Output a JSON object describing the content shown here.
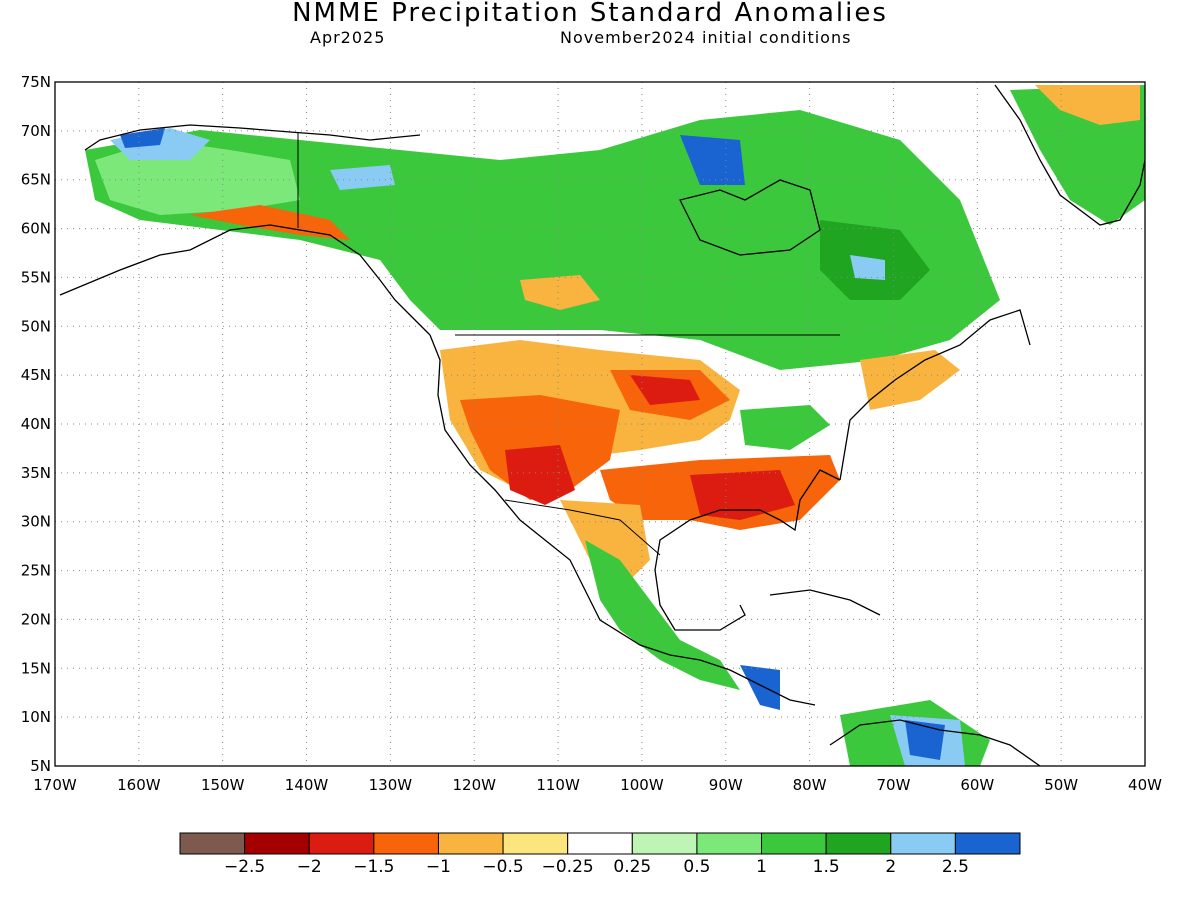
{
  "title": "NMME Precipitation Standard Anomalies",
  "valid_month": "Apr2025",
  "initial_conditions": "November2024 initial conditions",
  "map": {
    "lat_labels": [
      "75N",
      "70N",
      "65N",
      "60N",
      "55N",
      "50N",
      "45N",
      "40N",
      "35N",
      "30N",
      "25N",
      "20N",
      "15N",
      "10N",
      "5N"
    ],
    "lon_labels": [
      "170W",
      "160W",
      "150W",
      "140W",
      "130W",
      "120W",
      "110W",
      "100W",
      "90W",
      "80W",
      "70W",
      "60W",
      "50W",
      "40W"
    ],
    "lat_range": [
      5,
      75
    ],
    "lon_range": [
      -170,
      -40
    ],
    "grid": "dotted"
  },
  "colorbar": {
    "colors": [
      "#7e5a4e",
      "#a50000",
      "#dc1c10",
      "#f8640a",
      "#f9b440",
      "#fde57d",
      "#ffffff",
      "#bff5b4",
      "#7ce87a",
      "#3cc83c",
      "#1fa51f",
      "#8acbf3",
      "#1a64d2"
    ],
    "labels": [
      "−2.5",
      "−2",
      "−1.5",
      "−1",
      "−0.5",
      "−0.25",
      "0.25",
      "0.5",
      "1",
      "1.5",
      "2",
      "2.5"
    ]
  }
}
